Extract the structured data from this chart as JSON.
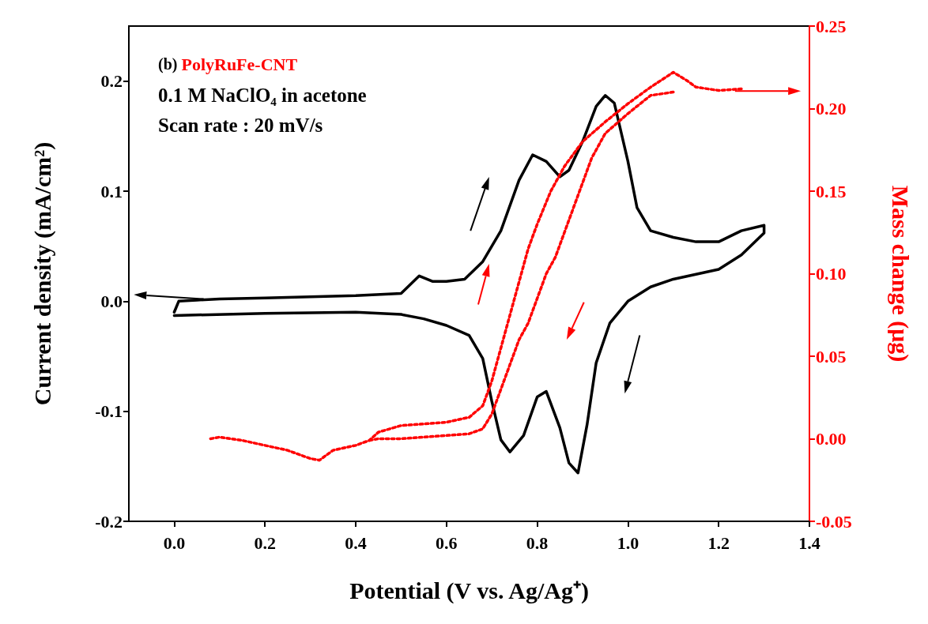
{
  "chart_data": {
    "type": "line",
    "xlabel": "Potential (V vs. Ag/Ag⁺)",
    "ylabel": "Current density (mA/cm²)",
    "y2label": "Mass change (μg)",
    "annotations": [
      "(b) PolyRuFe-CNT",
      "0.1 M NaClO₄ in acetone",
      "Scan rate : 20 mV/s"
    ],
    "xlim": [
      -0.1,
      1.4
    ],
    "xticks": [
      {
        "value": 0,
        "label": "0.0"
      },
      0.2,
      0.4,
      0.6,
      0.8,
      {
        "value": 1,
        "label": "1.0"
      },
      1.2,
      1.4
    ],
    "ylim": [
      -0.2,
      0.25
    ],
    "yticks": [
      -0.2,
      -0.1,
      {
        "value": 0,
        "label": "0.0"
      },
      0.1,
      0.2
    ],
    "y2lim": [
      -0.05,
      0.25
    ],
    "y2ticks": [
      -0.05,
      {
        "value": 0,
        "label": "0.00"
      },
      0.05,
      {
        "value": 0.1,
        "label": "0.10"
      },
      0.15,
      {
        "value": 0.2,
        "label": "0.20"
      },
      0.25
    ],
    "series": [
      {
        "color": "#000000",
        "line_style": "solid",
        "x": [
          0,
          0.01,
          0.05,
          0.1,
          0.2,
          0.3,
          0.4,
          0.5,
          0.54,
          0.57,
          0.6,
          0.64,
          0.68,
          0.72,
          0.76,
          0.79,
          0.82,
          0.85,
          0.87,
          0.9,
          0.93,
          0.95,
          0.97,
          1.0,
          1.02,
          1.05,
          1.1,
          1.15,
          1.2,
          1.25,
          1.3,
          1.3,
          1.25,
          1.2,
          1.1,
          1.05,
          1.0,
          0.96,
          0.93,
          0.91,
          0.89,
          0.87,
          0.85,
          0.82,
          0.8,
          0.77,
          0.74,
          0.72,
          0.7,
          0.68,
          0.65,
          0.6,
          0.55,
          0.5,
          0.4,
          0.2,
          0.0
        ],
        "values": [
          -0.01,
          0.0,
          0.001,
          0.002,
          0.003,
          0.004,
          0.005,
          0.007,
          0.023,
          0.018,
          0.018,
          0.02,
          0.036,
          0.064,
          0.11,
          0.133,
          0.127,
          0.113,
          0.119,
          0.145,
          0.177,
          0.187,
          0.18,
          0.127,
          0.085,
          0.064,
          0.058,
          0.054,
          0.054,
          0.064,
          0.069,
          0.062,
          0.042,
          0.029,
          0.02,
          0.013,
          0.0,
          -0.02,
          -0.056,
          -0.112,
          -0.156,
          -0.147,
          -0.115,
          -0.082,
          -0.087,
          -0.122,
          -0.137,
          -0.126,
          -0.091,
          -0.052,
          -0.031,
          -0.022,
          -0.016,
          -0.012,
          -0.01,
          -0.011,
          -0.013
        ]
      },
      {
        "color": "#ff0000",
        "line_style": "dotted",
        "axis": "y2",
        "x": [
          0.08,
          0.1,
          0.15,
          0.2,
          0.25,
          0.3,
          0.32,
          0.35,
          0.4,
          0.43,
          0.45,
          0.5,
          0.55,
          0.6,
          0.65,
          0.68,
          0.7,
          0.72,
          0.74,
          0.76,
          0.78,
          0.8,
          0.83,
          0.86,
          0.9,
          0.95,
          1.0,
          1.05,
          1.1,
          1.13,
          1.15,
          1.2,
          1.25
        ],
        "values": [
          0,
          0.001,
          -0.001,
          -0.004,
          -0.007,
          -0.012,
          -0.013,
          -0.007,
          -0.004,
          -0.001,
          0.004,
          0.008,
          0.009,
          0.01,
          0.013,
          0.02,
          0.035,
          0.055,
          0.075,
          0.095,
          0.115,
          0.13,
          0.15,
          0.165,
          0.18,
          0.192,
          0.203,
          0.213,
          0.222,
          0.217,
          0.213,
          0.211,
          0.212
        ]
      },
      {
        "color": "#ff0000",
        "line_style": "dotted",
        "axis": "y2",
        "x": [
          1.1,
          1.05,
          1.0,
          0.95,
          0.92,
          0.9,
          0.88,
          0.86,
          0.84,
          0.82,
          0.8,
          0.78,
          0.76,
          0.74,
          0.72,
          0.7,
          0.68,
          0.65,
          0.6,
          0.55,
          0.5,
          0.45,
          0.43
        ],
        "values": [
          0.21,
          0.208,
          0.197,
          0.185,
          0.17,
          0.155,
          0.14,
          0.125,
          0.11,
          0.1,
          0.085,
          0.07,
          0.06,
          0.045,
          0.03,
          0.015,
          0.006,
          0.003,
          0.002,
          0.001,
          0.0,
          0.0,
          -0.001
        ]
      }
    ]
  }
}
